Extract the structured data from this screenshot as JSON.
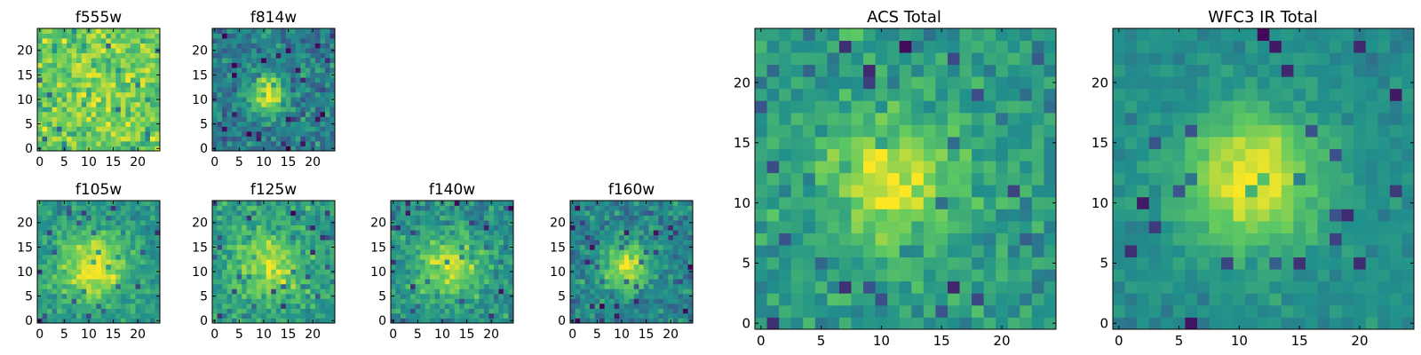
{
  "figure": {
    "background": "#ffffff",
    "colormap": "viridis",
    "colormap_stops": [
      "#440154",
      "#3b528b",
      "#21918c",
      "#5ec962",
      "#fde725"
    ]
  },
  "chart_data": [
    {
      "type": "heatmap",
      "title": "f555w",
      "xlabel": "",
      "ylabel": "",
      "xlim": [
        -0.5,
        24.5
      ],
      "ylim": [
        -0.5,
        24.5
      ],
      "xticks": [
        "0",
        "5",
        "10",
        "15",
        "20"
      ],
      "yticks": [
        "0",
        "5",
        "10",
        "15",
        "20"
      ],
      "grid_size": 25,
      "peak": [
        12,
        12
      ],
      "peak_amplitude": 0.08,
      "peak_sigma": 5,
      "base_level": 0.75,
      "noise": 0.15,
      "seed": 11
    },
    {
      "type": "heatmap",
      "title": "f814w",
      "xlabel": "",
      "ylabel": "",
      "xlim": [
        -0.5,
        24.5
      ],
      "ylim": [
        -0.5,
        24.5
      ],
      "xticks": [
        "0",
        "5",
        "10",
        "15",
        "20"
      ],
      "yticks": [
        "0",
        "5",
        "10",
        "15",
        "20"
      ],
      "grid_size": 25,
      "peak": [
        11,
        11
      ],
      "peak_amplitude": 0.6,
      "peak_sigma": 2.6,
      "base_level": 0.42,
      "noise": 0.13,
      "seed": 23
    },
    {
      "type": "heatmap",
      "title": "f105w",
      "xlabel": "",
      "ylabel": "",
      "xlim": [
        -0.5,
        24.5
      ],
      "ylim": [
        -0.5,
        24.5
      ],
      "xticks": [
        "0",
        "5",
        "10",
        "15",
        "20"
      ],
      "yticks": [
        "0",
        "5",
        "10",
        "15",
        "20"
      ],
      "grid_size": 25,
      "peak": [
        11,
        11
      ],
      "peak_amplitude": 0.45,
      "peak_sigma": 5,
      "base_level": 0.52,
      "noise": 0.1,
      "seed": 37
    },
    {
      "type": "heatmap",
      "title": "f125w",
      "xlabel": "",
      "ylabel": "",
      "xlim": [
        -0.5,
        24.5
      ],
      "ylim": [
        -0.5,
        24.5
      ],
      "xticks": [
        "0",
        "5",
        "10",
        "15",
        "20"
      ],
      "yticks": [
        "0",
        "5",
        "10",
        "15",
        "20"
      ],
      "grid_size": 25,
      "peak": [
        11,
        11
      ],
      "peak_amplitude": 0.35,
      "peak_sigma": 4.5,
      "base_level": 0.55,
      "noise": 0.12,
      "seed": 41
    },
    {
      "type": "heatmap",
      "title": "f140w",
      "xlabel": "",
      "ylabel": "",
      "xlim": [
        -0.5,
        24.5
      ],
      "ylim": [
        -0.5,
        24.5
      ],
      "xticks": [
        "0",
        "5",
        "10",
        "15",
        "20"
      ],
      "yticks": [
        "0",
        "5",
        "10",
        "15",
        "20"
      ],
      "grid_size": 25,
      "peak": [
        11,
        11
      ],
      "peak_amplitude": 0.4,
      "peak_sigma": 4.5,
      "base_level": 0.5,
      "noise": 0.12,
      "seed": 53
    },
    {
      "type": "heatmap",
      "title": "f160w",
      "xlabel": "",
      "ylabel": "",
      "xlim": [
        -0.5,
        24.5
      ],
      "ylim": [
        -0.5,
        24.5
      ],
      "xticks": [
        "0",
        "5",
        "10",
        "15",
        "20"
      ],
      "yticks": [
        "0",
        "5",
        "10",
        "15",
        "20"
      ],
      "grid_size": 25,
      "peak": [
        11,
        11
      ],
      "peak_amplitude": 0.5,
      "peak_sigma": 3.5,
      "base_level": 0.45,
      "noise": 0.12,
      "seed": 67
    },
    {
      "type": "heatmap",
      "title": "ACS Total",
      "xlabel": "",
      "ylabel": "",
      "xlim": [
        -0.5,
        24.5
      ],
      "ylim": [
        -0.5,
        24.5
      ],
      "xticks": [
        "0",
        "5",
        "10",
        "15",
        "20"
      ],
      "yticks": [
        "0",
        "5",
        "10",
        "15",
        "20"
      ],
      "grid_size": 25,
      "peak": [
        11,
        12
      ],
      "peak_amplitude": 0.4,
      "peak_sigma": 3.5,
      "base_level": 0.55,
      "noise": 0.11,
      "seed": 79
    },
    {
      "type": "heatmap",
      "title": "WFC3 IR Total",
      "xlabel": "",
      "ylabel": "",
      "xlim": [
        -0.5,
        24.5
      ],
      "ylim": [
        -0.5,
        24.5
      ],
      "xticks": [
        "0",
        "5",
        "10",
        "15",
        "20"
      ],
      "yticks": [
        "0",
        "5",
        "10",
        "15",
        "20"
      ],
      "grid_size": 25,
      "peak": [
        11,
        12
      ],
      "peak_amplitude": 0.5,
      "peak_sigma": 4,
      "base_level": 0.48,
      "noise": 0.06,
      "seed": 97
    }
  ]
}
